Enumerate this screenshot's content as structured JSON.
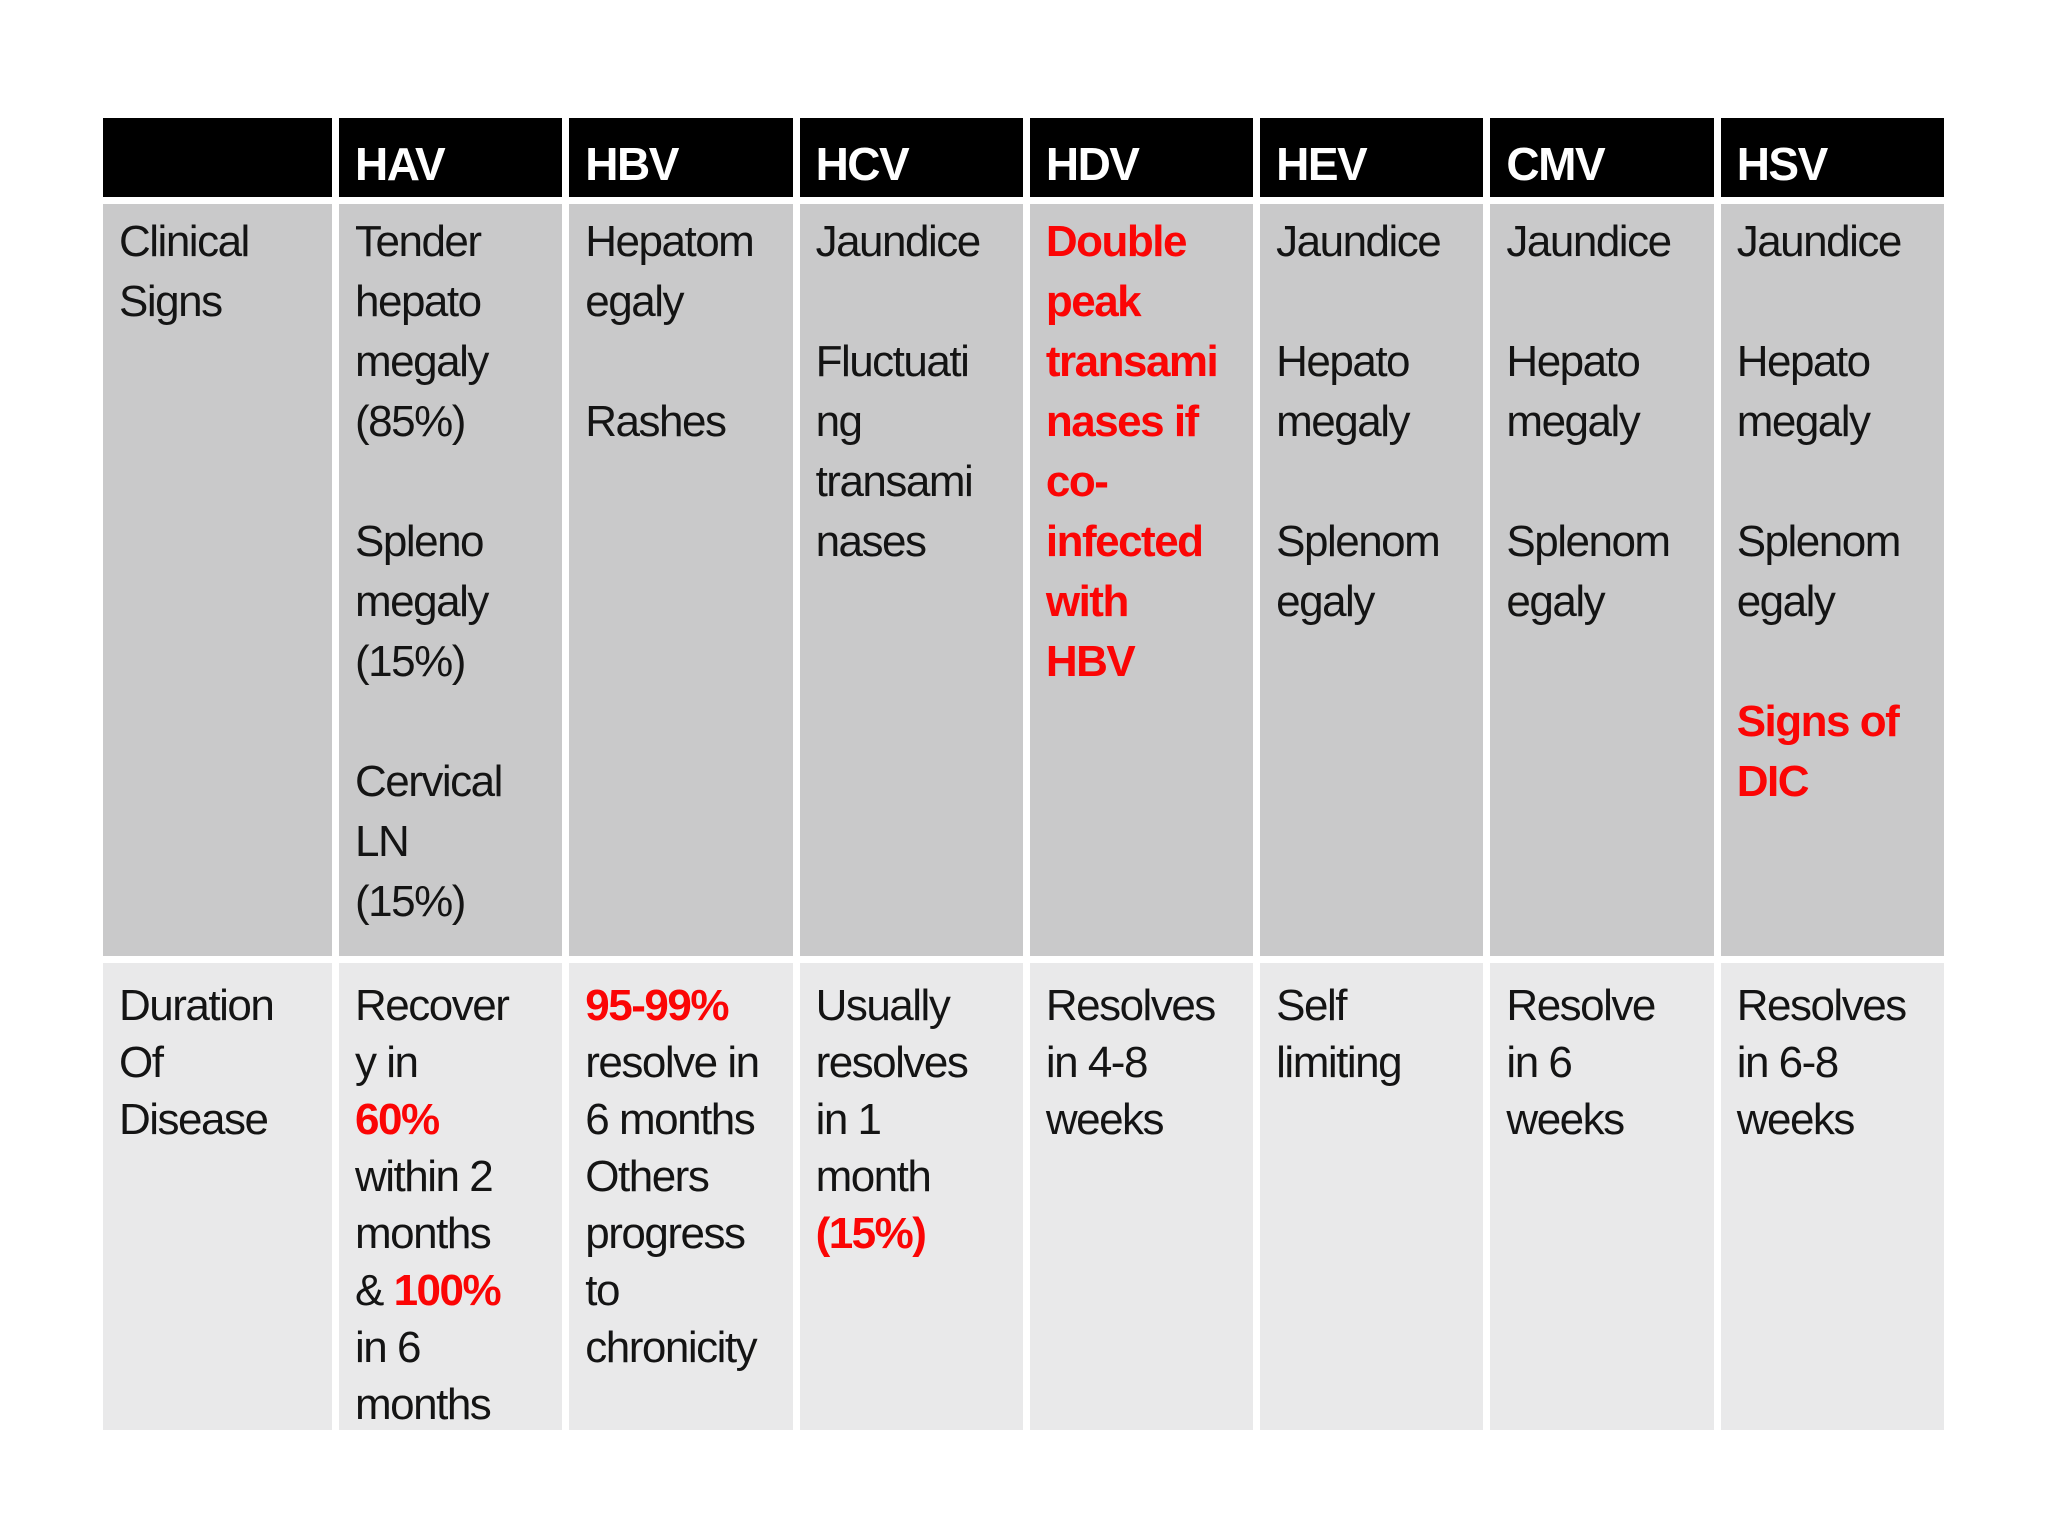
{
  "table": {
    "columns": [
      "",
      "HAV",
      "HBV",
      "HCV",
      "HDV",
      "HEV",
      "CMV",
      "HSV"
    ],
    "rows": [
      {
        "name": "clinical-signs",
        "cells": [
          [
            {
              "t": "Clinical\nSigns"
            }
          ],
          [
            {
              "t": "Tender\nhepato\nmegaly\n(85%)\n\nSpleno\nmegaly\n(15%)\n\nCervical\nLN\n(15%)"
            }
          ],
          [
            {
              "t": "Hepatom\negaly\n\nRashes"
            }
          ],
          [
            {
              "t": "Jaundice\n\nFluctuati\nng\ntransami\nnases"
            }
          ],
          [
            {
              "t": "Double\npeak\ntransami\nnases if\nco-\ninfected\nwith\nHBV",
              "red": true
            }
          ],
          [
            {
              "t": "Jaundice\n\nHepato\nmegaly\n\nSplenom\negaly"
            }
          ],
          [
            {
              "t": "Jaundice\n\nHepato\nmegaly\n\nSplenom\negaly"
            }
          ],
          [
            {
              "t": "Jaundice\n\nHepato\nmegaly\n\nSplenom\negaly\n\n"
            },
            {
              "t": "Signs of\nDIC",
              "red": true
            }
          ]
        ]
      },
      {
        "name": "duration-of-disease",
        "cells": [
          [
            {
              "t": "Duration\nOf\nDisease"
            }
          ],
          [
            {
              "t": "Recover\ny in\n"
            },
            {
              "t": "60%",
              "red": true
            },
            {
              "t": "\nwithin 2\nmonths\n& "
            },
            {
              "t": "100%",
              "red": true
            },
            {
              "t": "\nin 6\nmonths"
            }
          ],
          [
            {
              "t": "95-99%",
              "red": true
            },
            {
              "t": "\nresolve in\n6 months\nOthers\nprogress\nto\nchronicity"
            }
          ],
          [
            {
              "t": "Usually\nresolves\nin 1\nmonth\n"
            },
            {
              "t": "(15%)",
              "red": true
            }
          ],
          [
            {
              "t": "Resolves\nin 4-8\nweeks"
            }
          ],
          [
            {
              "t": "Self\nlimiting"
            }
          ],
          [
            {
              "t": "Resolve\nin 6\nweeks"
            }
          ],
          [
            {
              "t": "Resolves\nin 6-8\nweeks"
            }
          ]
        ]
      }
    ]
  },
  "colors": {
    "header_bg": "#000000",
    "header_text": "#ffffff",
    "row_clinical_bg": "#c9c9ca",
    "row_duration_bg": "#e9e9ea",
    "emphasis_red": "#fb0505",
    "divider": "#ffffff"
  }
}
